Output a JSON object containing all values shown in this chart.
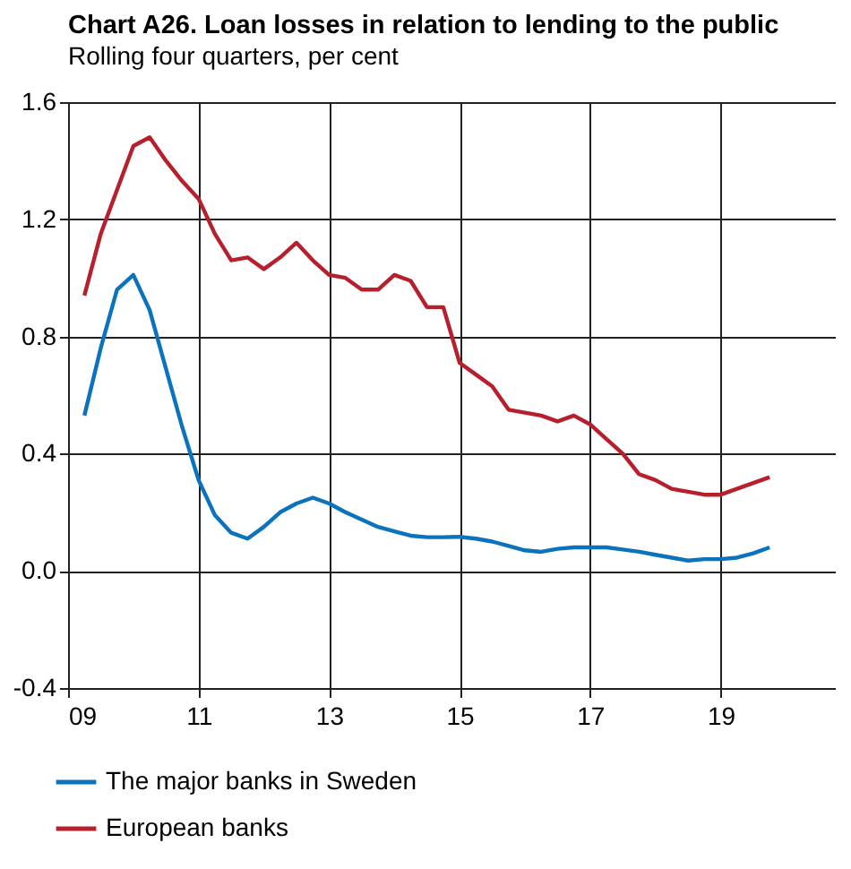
{
  "chart_data": {
    "type": "line",
    "title": "Chart A26. Loan losses in relation to lending to the public",
    "subtitle": "Rolling four quarters, per cent",
    "x": [
      2009.25,
      2009.5,
      2009.75,
      2010,
      2010.25,
      2010.5,
      2010.75,
      2011,
      2011.25,
      2011.5,
      2011.75,
      2012,
      2012.25,
      2012.5,
      2012.75,
      2013,
      2013.25,
      2013.5,
      2013.75,
      2014,
      2014.25,
      2014.5,
      2014.75,
      2015,
      2015.25,
      2015.5,
      2015.75,
      2016,
      2016.25,
      2016.5,
      2016.75,
      2017,
      2017.25,
      2017.5,
      2017.75,
      2018,
      2018.25,
      2018.5,
      2018.75,
      2019,
      2019.25,
      2019.5,
      2019.75
    ],
    "series": [
      {
        "name": "The major banks in Sweden",
        "color": "#0b72bd",
        "values": [
          0.53,
          0.76,
          0.96,
          1.01,
          0.89,
          0.69,
          0.49,
          0.31,
          0.19,
          0.13,
          0.11,
          0.15,
          0.2,
          0.23,
          0.25,
          0.23,
          0.2,
          0.175,
          0.15,
          0.135,
          0.12,
          0.115,
          0.115,
          0.116,
          0.11,
          0.1,
          0.085,
          0.07,
          0.065,
          0.075,
          0.08,
          0.08,
          0.08,
          0.073,
          0.065,
          0.055,
          0.045,
          0.035,
          0.04,
          0.04,
          0.045,
          0.06,
          0.08
        ]
      },
      {
        "name": "European banks",
        "color": "#b81f2d",
        "values": [
          0.94,
          1.15,
          1.3,
          1.45,
          1.48,
          1.4,
          1.33,
          1.27,
          1.15,
          1.06,
          1.07,
          1.03,
          1.07,
          1.12,
          1.06,
          1.01,
          1.0,
          0.96,
          0.96,
          1.01,
          0.99,
          0.9,
          0.9,
          0.71,
          0.67,
          0.63,
          0.55,
          0.54,
          0.53,
          0.51,
          0.53,
          0.5,
          0.45,
          0.4,
          0.33,
          0.31,
          0.28,
          0.27,
          0.26,
          0.26,
          0.28,
          0.3,
          0.32
        ]
      }
    ],
    "xlim": [
      2009,
      2020.75
    ],
    "xticks": [
      {
        "value": 2009,
        "label": "09"
      },
      {
        "value": 2011,
        "label": "11"
      },
      {
        "value": 2013,
        "label": "13"
      },
      {
        "value": 2015,
        "label": "15"
      },
      {
        "value": 2017,
        "label": "17"
      },
      {
        "value": 2019,
        "label": "19"
      }
    ],
    "ylim": [
      -0.4,
      1.6
    ],
    "yticks": [
      -0.4,
      {
        "value": 0,
        "label": "0.0"
      },
      0.4,
      0.8,
      1.2,
      1.6
    ],
    "grid": true,
    "legend": "bottom",
    "marker": "none",
    "line_style": "solid"
  }
}
